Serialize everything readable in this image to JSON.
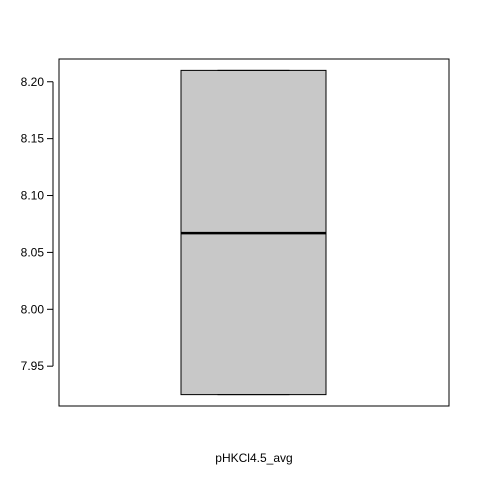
{
  "chart_data": {
    "type": "boxplot",
    "title": "",
    "xlabel": "pHKCl4.5_avg",
    "ylabel": "",
    "ylim": [
      7.915,
      8.22
    ],
    "yticks": [
      7.95,
      8.0,
      8.05,
      8.1,
      8.15,
      8.2
    ],
    "ytick_labels": [
      "7.95",
      "8.00",
      "8.05",
      "8.10",
      "8.15",
      "8.20"
    ],
    "series": [
      {
        "min": 7.925,
        "q1": 7.925,
        "median": 8.067,
        "q3": 8.21,
        "max": 8.21
      }
    ],
    "box_color": "#c8c8c8",
    "grid": false
  }
}
